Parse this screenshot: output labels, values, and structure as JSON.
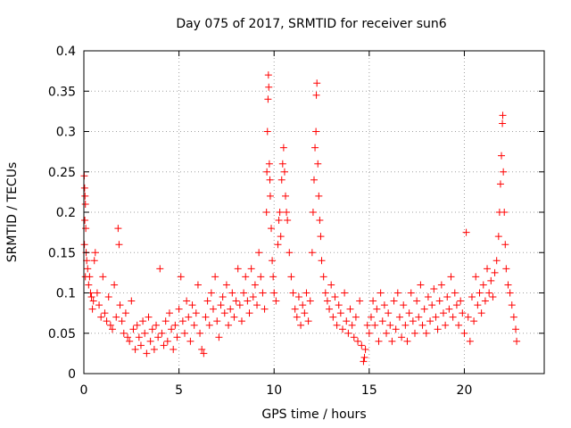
{
  "chart_data": {
    "type": "scatter",
    "title": "Day 075 of 2017, SRMTID for receiver sun6",
    "xlabel": "GPS time / hours",
    "ylabel": "SRMTID / TECUs",
    "xlim": [
      0,
      24.2
    ],
    "ylim": [
      0,
      0.4
    ],
    "x_ticks": [
      0,
      5,
      10,
      15,
      20
    ],
    "x_tick_labels": [
      "0",
      "5",
      "10",
      "15",
      "20"
    ],
    "y_ticks": [
      0,
      0.05,
      0.1,
      0.15,
      0.2,
      0.25,
      0.3,
      0.35,
      0.4
    ],
    "y_tick_labels": [
      "0",
      "0.05",
      "0.1",
      "0.15",
      "0.2",
      "0.25",
      "0.3",
      "0.35",
      "0.4"
    ],
    "grid": true,
    "marker": "+",
    "series": [
      {
        "name": "SRMTID",
        "color": "#ff0000",
        "points": [
          [
            0.02,
            0.245
          ],
          [
            0.04,
            0.23
          ],
          [
            0.06,
            0.22
          ],
          [
            0.08,
            0.21
          ],
          [
            0.05,
            0.19
          ],
          [
            0.1,
            0.18
          ],
          [
            0.03,
            0.16
          ],
          [
            0.12,
            0.15
          ],
          [
            0.15,
            0.14
          ],
          [
            0.2,
            0.13
          ],
          [
            0.08,
            0.12
          ],
          [
            0.25,
            0.11
          ],
          [
            0.3,
            0.12
          ],
          [
            0.35,
            0.1
          ],
          [
            0.4,
            0.095
          ],
          [
            0.5,
            0.09
          ],
          [
            0.55,
            0.14
          ],
          [
            0.6,
            0.15
          ],
          [
            0.45,
            0.08
          ],
          [
            0.7,
            0.1
          ],
          [
            0.8,
            0.085
          ],
          [
            0.9,
            0.07
          ],
          [
            1.0,
            0.12
          ],
          [
            1.1,
            0.075
          ],
          [
            1.2,
            0.065
          ],
          [
            1.3,
            0.095
          ],
          [
            1.4,
            0.06
          ],
          [
            1.5,
            0.055
          ],
          [
            1.6,
            0.11
          ],
          [
            1.7,
            0.07
          ],
          [
            1.8,
            0.18
          ],
          [
            1.85,
            0.16
          ],
          [
            1.9,
            0.085
          ],
          [
            2.0,
            0.065
          ],
          [
            2.1,
            0.05
          ],
          [
            2.2,
            0.075
          ],
          [
            2.3,
            0.045
          ],
          [
            2.4,
            0.04
          ],
          [
            2.5,
            0.09
          ],
          [
            2.6,
            0.055
          ],
          [
            2.7,
            0.03
          ],
          [
            2.8,
            0.06
          ],
          [
            2.9,
            0.045
          ],
          [
            3.0,
            0.035
          ],
          [
            3.1,
            0.065
          ],
          [
            3.2,
            0.05
          ],
          [
            3.3,
            0.025
          ],
          [
            3.4,
            0.07
          ],
          [
            3.5,
            0.04
          ],
          [
            3.6,
            0.055
          ],
          [
            3.7,
            0.03
          ],
          [
            3.8,
            0.06
          ],
          [
            3.9,
            0.045
          ],
          [
            4.0,
            0.13
          ],
          [
            4.1,
            0.05
          ],
          [
            4.2,
            0.035
          ],
          [
            4.3,
            0.065
          ],
          [
            4.4,
            0.04
          ],
          [
            4.5,
            0.075
          ],
          [
            4.6,
            0.055
          ],
          [
            4.7,
            0.03
          ],
          [
            4.8,
            0.06
          ],
          [
            4.9,
            0.045
          ],
          [
            5.0,
            0.08
          ],
          [
            5.1,
            0.12
          ],
          [
            5.2,
            0.065
          ],
          [
            5.3,
            0.05
          ],
          [
            5.4,
            0.09
          ],
          [
            5.5,
            0.07
          ],
          [
            5.6,
            0.04
          ],
          [
            5.7,
            0.085
          ],
          [
            5.8,
            0.06
          ],
          [
            5.9,
            0.075
          ],
          [
            6.0,
            0.11
          ],
          [
            6.1,
            0.05
          ],
          [
            6.2,
            0.03
          ],
          [
            6.3,
            0.025
          ],
          [
            6.4,
            0.07
          ],
          [
            6.5,
            0.09
          ],
          [
            6.6,
            0.06
          ],
          [
            6.7,
            0.1
          ],
          [
            6.8,
            0.08
          ],
          [
            6.9,
            0.12
          ],
          [
            7.0,
            0.065
          ],
          [
            7.1,
            0.045
          ],
          [
            7.2,
            0.085
          ],
          [
            7.3,
            0.095
          ],
          [
            7.4,
            0.075
          ],
          [
            7.5,
            0.11
          ],
          [
            7.6,
            0.06
          ],
          [
            7.7,
            0.08
          ],
          [
            7.8,
            0.1
          ],
          [
            7.9,
            0.07
          ],
          [
            8.0,
            0.09
          ],
          [
            8.1,
            0.13
          ],
          [
            8.2,
            0.085
          ],
          [
            8.3,
            0.065
          ],
          [
            8.4,
            0.1
          ],
          [
            8.5,
            0.12
          ],
          [
            8.6,
            0.09
          ],
          [
            8.7,
            0.075
          ],
          [
            8.8,
            0.13
          ],
          [
            8.9,
            0.095
          ],
          [
            9.0,
            0.11
          ],
          [
            9.1,
            0.085
          ],
          [
            9.2,
            0.15
          ],
          [
            9.3,
            0.12
          ],
          [
            9.4,
            0.1
          ],
          [
            9.5,
            0.08
          ],
          [
            9.6,
            0.2
          ],
          [
            9.62,
            0.25
          ],
          [
            9.65,
            0.3
          ],
          [
            9.68,
            0.34
          ],
          [
            9.7,
            0.37
          ],
          [
            9.72,
            0.355
          ],
          [
            9.75,
            0.26
          ],
          [
            9.78,
            0.24
          ],
          [
            9.8,
            0.22
          ],
          [
            9.85,
            0.18
          ],
          [
            9.9,
            0.14
          ],
          [
            9.95,
            0.12
          ],
          [
            10.0,
            0.1
          ],
          [
            10.1,
            0.09
          ],
          [
            10.2,
            0.16
          ],
          [
            10.25,
            0.19
          ],
          [
            10.3,
            0.2
          ],
          [
            10.35,
            0.17
          ],
          [
            10.4,
            0.24
          ],
          [
            10.45,
            0.26
          ],
          [
            10.5,
            0.28
          ],
          [
            10.55,
            0.25
          ],
          [
            10.6,
            0.22
          ],
          [
            10.65,
            0.2
          ],
          [
            10.7,
            0.19
          ],
          [
            10.8,
            0.15
          ],
          [
            10.9,
            0.12
          ],
          [
            11.0,
            0.1
          ],
          [
            11.1,
            0.08
          ],
          [
            11.2,
            0.07
          ],
          [
            11.3,
            0.095
          ],
          [
            11.4,
            0.06
          ],
          [
            11.5,
            0.085
          ],
          [
            11.6,
            0.075
          ],
          [
            11.7,
            0.1
          ],
          [
            11.8,
            0.065
          ],
          [
            11.9,
            0.09
          ],
          [
            12.0,
            0.15
          ],
          [
            12.05,
            0.2
          ],
          [
            12.1,
            0.24
          ],
          [
            12.15,
            0.28
          ],
          [
            12.2,
            0.3
          ],
          [
            12.22,
            0.345
          ],
          [
            12.25,
            0.36
          ],
          [
            12.3,
            0.26
          ],
          [
            12.35,
            0.22
          ],
          [
            12.4,
            0.19
          ],
          [
            12.45,
            0.17
          ],
          [
            12.5,
            0.14
          ],
          [
            12.6,
            0.12
          ],
          [
            12.7,
            0.1
          ],
          [
            12.8,
            0.09
          ],
          [
            12.9,
            0.08
          ],
          [
            13.0,
            0.11
          ],
          [
            13.1,
            0.07
          ],
          [
            13.2,
            0.095
          ],
          [
            13.3,
            0.06
          ],
          [
            13.4,
            0.085
          ],
          [
            13.5,
            0.075
          ],
          [
            13.6,
            0.055
          ],
          [
            13.7,
            0.1
          ],
          [
            13.8,
            0.065
          ],
          [
            13.9,
            0.05
          ],
          [
            14.0,
            0.08
          ],
          [
            14.1,
            0.06
          ],
          [
            14.2,
            0.045
          ],
          [
            14.3,
            0.07
          ],
          [
            14.4,
            0.04
          ],
          [
            14.5,
            0.09
          ],
          [
            14.6,
            0.035
          ],
          [
            14.7,
            0.015
          ],
          [
            14.75,
            0.02
          ],
          [
            14.8,
            0.03
          ],
          [
            14.9,
            0.06
          ],
          [
            15.0,
            0.05
          ],
          [
            15.1,
            0.07
          ],
          [
            15.2,
            0.09
          ],
          [
            15.3,
            0.06
          ],
          [
            15.4,
            0.08
          ],
          [
            15.5,
            0.04
          ],
          [
            15.6,
            0.1
          ],
          [
            15.7,
            0.065
          ],
          [
            15.8,
            0.085
          ],
          [
            15.9,
            0.05
          ],
          [
            16.0,
            0.075
          ],
          [
            16.1,
            0.06
          ],
          [
            16.2,
            0.04
          ],
          [
            16.3,
            0.09
          ],
          [
            16.4,
            0.055
          ],
          [
            16.5,
            0.1
          ],
          [
            16.6,
            0.07
          ],
          [
            16.7,
            0.045
          ],
          [
            16.8,
            0.085
          ],
          [
            16.9,
            0.06
          ],
          [
            17.0,
            0.04
          ],
          [
            17.1,
            0.075
          ],
          [
            17.2,
            0.1
          ],
          [
            17.3,
            0.065
          ],
          [
            17.4,
            0.05
          ],
          [
            17.5,
            0.09
          ],
          [
            17.6,
            0.07
          ],
          [
            17.7,
            0.11
          ],
          [
            17.8,
            0.06
          ],
          [
            17.9,
            0.08
          ],
          [
            18.0,
            0.05
          ],
          [
            18.1,
            0.095
          ],
          [
            18.2,
            0.065
          ],
          [
            18.3,
            0.085
          ],
          [
            18.4,
            0.105
          ],
          [
            18.5,
            0.07
          ],
          [
            18.6,
            0.055
          ],
          [
            18.7,
            0.09
          ],
          [
            18.8,
            0.11
          ],
          [
            18.9,
            0.075
          ],
          [
            19.0,
            0.06
          ],
          [
            19.1,
            0.095
          ],
          [
            19.2,
            0.08
          ],
          [
            19.3,
            0.12
          ],
          [
            19.4,
            0.07
          ],
          [
            19.5,
            0.1
          ],
          [
            19.6,
            0.085
          ],
          [
            19.7,
            0.06
          ],
          [
            19.8,
            0.09
          ],
          [
            19.9,
            0.075
          ],
          [
            20.0,
            0.05
          ],
          [
            20.1,
            0.175
          ],
          [
            20.2,
            0.07
          ],
          [
            20.3,
            0.04
          ],
          [
            20.4,
            0.095
          ],
          [
            20.5,
            0.065
          ],
          [
            20.6,
            0.12
          ],
          [
            20.7,
            0.085
          ],
          [
            20.8,
            0.1
          ],
          [
            20.9,
            0.075
          ],
          [
            21.0,
            0.11
          ],
          [
            21.1,
            0.09
          ],
          [
            21.2,
            0.13
          ],
          [
            21.3,
            0.1
          ],
          [
            21.4,
            0.115
          ],
          [
            21.5,
            0.095
          ],
          [
            21.6,
            0.125
          ],
          [
            21.7,
            0.14
          ],
          [
            21.8,
            0.17
          ],
          [
            21.85,
            0.2
          ],
          [
            21.9,
            0.235
          ],
          [
            21.95,
            0.27
          ],
          [
            22.0,
            0.31
          ],
          [
            22.02,
            0.32
          ],
          [
            22.05,
            0.25
          ],
          [
            22.1,
            0.2
          ],
          [
            22.15,
            0.16
          ],
          [
            22.2,
            0.13
          ],
          [
            22.3,
            0.11
          ],
          [
            22.4,
            0.1
          ],
          [
            22.5,
            0.085
          ],
          [
            22.6,
            0.07
          ],
          [
            22.7,
            0.055
          ],
          [
            22.75,
            0.04
          ]
        ]
      }
    ]
  }
}
